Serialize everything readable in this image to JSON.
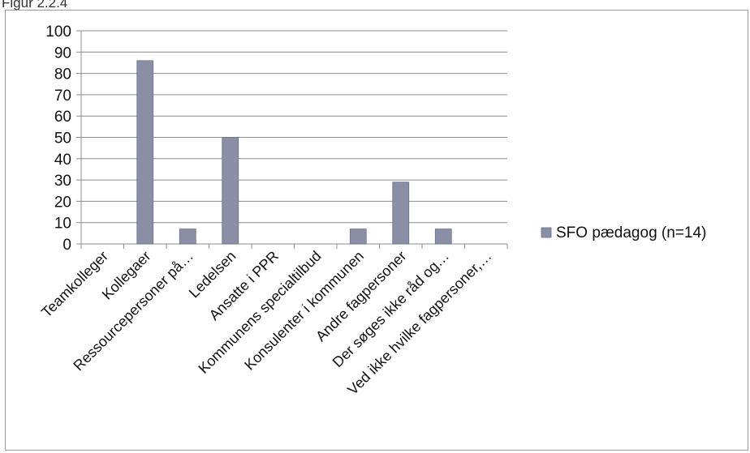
{
  "figure": {
    "caption": "Figur 2.2.4"
  },
  "chart_data": {
    "type": "bar",
    "categories": [
      "Teamkolleger",
      "Kollegaer",
      "Ressourcepersoner på…",
      "Ledelsen",
      "Ansatte i PPR",
      "Kommunens specialtilbud",
      "Konsulenter i kommunen",
      "Andre fagpersoner",
      "Der søges ikke råd og…",
      "Ved ikke hvilke fagpersoner,…"
    ],
    "series": [
      {
        "name": "SFO pædagog (n=14)",
        "values": [
          0,
          86,
          7,
          50,
          0,
          0,
          7,
          29,
          7,
          0
        ],
        "color": "#8a8fa6"
      }
    ],
    "ylim": [
      0,
      100
    ],
    "yticks": [
      0,
      10,
      20,
      30,
      40,
      50,
      60,
      70,
      80,
      90,
      100
    ],
    "grid": true,
    "legend_position": "right"
  }
}
